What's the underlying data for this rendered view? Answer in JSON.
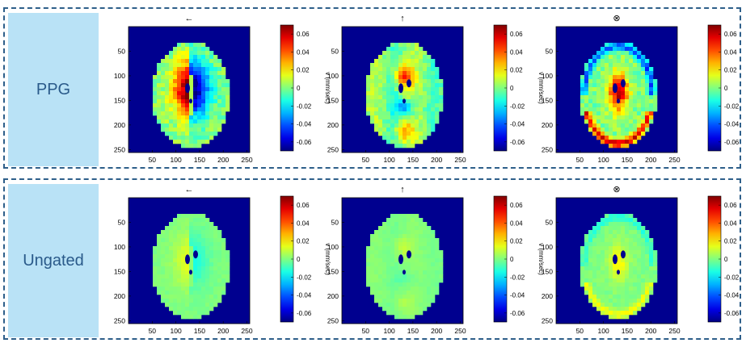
{
  "colors": {
    "border": "#2e5f8a",
    "label_bg": "#b9e2f6",
    "label_text": "#2a5a8a",
    "background_field": "#00008f"
  },
  "panels": [
    {
      "label": "PPG",
      "plots": [
        {
          "title": "←",
          "pattern": "lr",
          "intensity": 1.0
        },
        {
          "title": "↑",
          "pattern": "ud",
          "intensity": 0.75
        },
        {
          "title": "⊗",
          "pattern": "ap",
          "intensity": 1.0
        }
      ]
    },
    {
      "label": "Ungated",
      "plots": [
        {
          "title": "←",
          "pattern": "lr",
          "intensity": 0.2
        },
        {
          "title": "↑",
          "pattern": "ud",
          "intensity": 0.15
        },
        {
          "title": "⊗",
          "pattern": "ap",
          "intensity": 0.3
        }
      ]
    }
  ],
  "x_ticks": [
    "50",
    "100",
    "150",
    "200",
    "250"
  ],
  "y_ticks": [
    "50",
    "100",
    "150",
    "200",
    "250"
  ],
  "colorbar_ticks": [
    "0.06",
    "0.04",
    "0.02",
    "0",
    "-0.02",
    "-0.04",
    "-0.06"
  ],
  "colorbar_label": "v (mm/sec)",
  "value_range": [
    -0.07,
    0.07
  ]
}
